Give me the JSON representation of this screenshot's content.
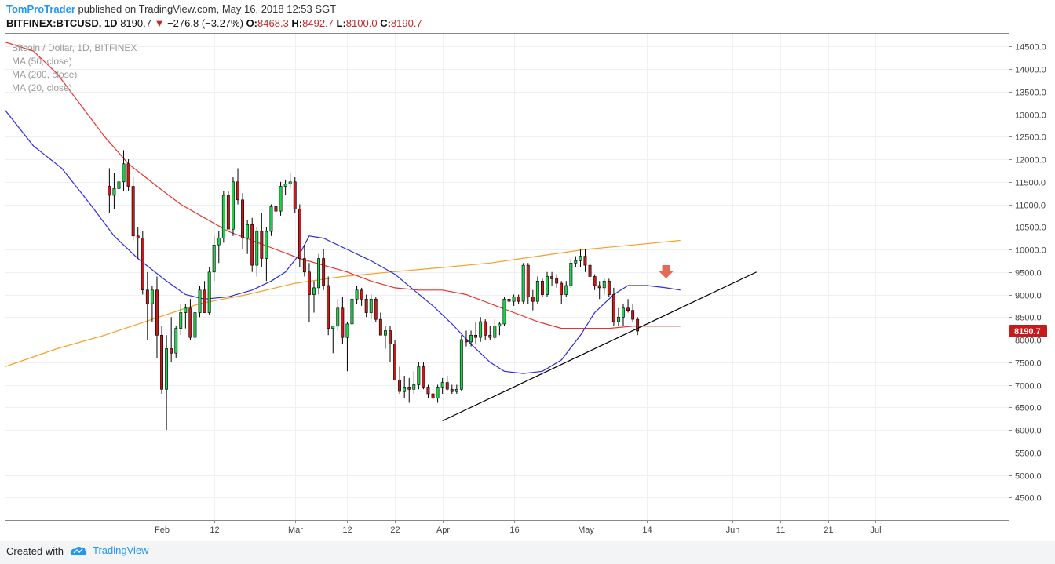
{
  "header": {
    "author": "TomProTrader",
    "published": "published on TradingView.com, May 16, 2018 12:53 SGT",
    "symbol": "BITFINEX:BTCUSD, 1D",
    "last": "8190.7",
    "change_arrow": "▼",
    "change": "−276.8 (−3.27%)",
    "o_label": "O:",
    "o": "8468.3",
    "h_label": "H:",
    "h": "8492.7",
    "l_label": "L:",
    "l": "8100.0",
    "c_label": "C:",
    "c": "8190.7"
  },
  "footer": {
    "created": "Created with",
    "brand": "TradingView",
    "brand_icon": "cloud-logo-icon"
  },
  "colors": {
    "up": "#1fd14a",
    "down": "#c41b1b",
    "ma50": "#e8322e",
    "ma200": "#f5a028",
    "ma20": "#2b2dde",
    "trend": "#000000",
    "accent": "#2196f3",
    "price_badge": "#c41b1b"
  },
  "chart_data": {
    "type": "candlestick",
    "title": "Bitcoin / Dollar, 1D, BITFINEX",
    "legend": [
      "MA (50, close)",
      "MA (200, close)",
      "MA (20, close)"
    ],
    "ylim": [
      4000,
      14800
    ],
    "yticks": [
      4500,
      5000,
      5500,
      6000,
      6500,
      7000,
      7500,
      8000,
      8500,
      9000,
      9500,
      10000,
      10500,
      11000,
      11500,
      12000,
      12500,
      13000,
      13500,
      14000,
      14500
    ],
    "x_day_range": [
      -1,
      210
    ],
    "xticks": [
      {
        "label": "Feb",
        "day": 32
      },
      {
        "label": "12",
        "day": 43
      },
      {
        "label": "Mar",
        "day": 60
      },
      {
        "label": "12",
        "day": 71
      },
      {
        "label": "22",
        "day": 81
      },
      {
        "label": "Apr",
        "day": 91
      },
      {
        "label": "16",
        "day": 106
      },
      {
        "label": "May",
        "day": 121
      },
      {
        "label": "14",
        "day": 134
      },
      {
        "label": "Jun",
        "day": 152
      },
      {
        "label": "11",
        "day": 162
      },
      {
        "label": "21",
        "day": 172
      },
      {
        "label": "Jul",
        "day": 182
      }
    ],
    "candles_first_day": 21,
    "candles": [
      [
        11400,
        11800,
        10800,
        11200
      ],
      [
        11200,
        11700,
        10900,
        11350
      ],
      [
        11350,
        11900,
        11000,
        11500
      ],
      [
        11500,
        12200,
        11300,
        11900
      ],
      [
        11900,
        12000,
        11300,
        11400
      ],
      [
        11400,
        11600,
        10200,
        10300
      ],
      [
        10300,
        10500,
        9800,
        10250
      ],
      [
        10250,
        10400,
        9000,
        9100
      ],
      [
        9100,
        9500,
        8000,
        8800
      ],
      [
        8800,
        9200,
        8400,
        9100
      ],
      [
        9100,
        9400,
        7600,
        8100
      ],
      [
        8100,
        8300,
        6800,
        6900
      ],
      [
        6900,
        8100,
        6000,
        7800
      ],
      [
        7800,
        8500,
        7500,
        7700
      ],
      [
        7700,
        8300,
        7600,
        8250
      ],
      [
        8250,
        8800,
        8100,
        8600
      ],
      [
        8600,
        8800,
        8250,
        8700
      ],
      [
        8700,
        8900,
        8000,
        8050
      ],
      [
        8050,
        8700,
        7900,
        8600
      ],
      [
        8600,
        9200,
        8500,
        9100
      ],
      [
        9100,
        9300,
        8700,
        8600
      ],
      [
        8600,
        9600,
        8550,
        9500
      ],
      [
        9500,
        10300,
        9300,
        10100
      ],
      [
        10100,
        10400,
        9700,
        10250
      ],
      [
        10250,
        11300,
        10150,
        11200
      ],
      [
        11200,
        11300,
        10500,
        10450
      ],
      [
        10450,
        11600,
        10300,
        11500
      ],
      [
        11500,
        11800,
        11000,
        11100
      ],
      [
        11100,
        11250,
        10000,
        10250
      ],
      [
        10250,
        10650,
        9900,
        10550
      ],
      [
        10550,
        10700,
        9500,
        9650
      ],
      [
        9650,
        10500,
        9400,
        10400
      ],
      [
        10400,
        10800,
        9600,
        9800
      ],
      [
        9800,
        10500,
        9300,
        10400
      ],
      [
        10400,
        11000,
        10300,
        10950
      ],
      [
        10950,
        11200,
        10700,
        10850
      ],
      [
        10850,
        11500,
        10750,
        11400
      ],
      [
        11400,
        11550,
        11200,
        11450
      ],
      [
        11450,
        11700,
        11350,
        11500
      ],
      [
        11500,
        11600,
        10800,
        10900
      ],
      [
        10900,
        11000,
        9600,
        9800
      ],
      [
        9800,
        10100,
        9400,
        9500
      ],
      [
        9500,
        9700,
        8400,
        9000
      ],
      [
        9000,
        9300,
        8600,
        9150
      ],
      [
        9150,
        9900,
        9000,
        9800
      ],
      [
        9800,
        10000,
        9100,
        9200
      ],
      [
        9200,
        9400,
        8100,
        8250
      ],
      [
        8250,
        8300,
        7700,
        8300
      ],
      [
        8300,
        8900,
        8200,
        8700
      ],
      [
        8700,
        8950,
        7900,
        8050
      ],
      [
        8050,
        8400,
        7300,
        8350
      ],
      [
        8350,
        9000,
        8250,
        8900
      ],
      [
        8900,
        9200,
        8800,
        9100
      ],
      [
        9100,
        9150,
        8750,
        8900
      ],
      [
        8900,
        9000,
        8500,
        8600
      ],
      [
        8600,
        9000,
        8450,
        8900
      ],
      [
        8900,
        8950,
        8400,
        8450
      ],
      [
        8450,
        8600,
        8100,
        8100
      ],
      [
        8100,
        8300,
        7800,
        8200
      ],
      [
        8200,
        8300,
        7500,
        7900
      ],
      [
        7900,
        8000,
        7200,
        7100
      ],
      [
        7100,
        7400,
        6800,
        6850
      ],
      [
        6850,
        7200,
        6700,
        6950
      ],
      [
        6950,
        7150,
        6600,
        6900
      ],
      [
        6900,
        7300,
        6800,
        7000
      ],
      [
        7000,
        7500,
        6900,
        7400
      ],
      [
        7400,
        7500,
        6900,
        6950
      ],
      [
        6950,
        7000,
        6700,
        6800
      ],
      [
        6800,
        7000,
        6650,
        6700
      ],
      [
        6700,
        7000,
        6600,
        6950
      ],
      [
        6950,
        7150,
        6800,
        7050
      ],
      [
        7050,
        7200,
        6850,
        6900
      ],
      [
        6900,
        7000,
        6800,
        6850
      ],
      [
        6850,
        7000,
        6800,
        6900
      ],
      [
        6900,
        8100,
        6850,
        8000
      ],
      [
        8000,
        8200,
        7850,
        7950
      ],
      [
        7950,
        8200,
        7850,
        8100
      ],
      [
        8100,
        8400,
        7900,
        8050
      ],
      [
        8050,
        8500,
        7950,
        8400
      ],
      [
        8400,
        8450,
        8000,
        8100
      ],
      [
        8100,
        8300,
        8000,
        8050
      ],
      [
        8050,
        8450,
        8000,
        8300
      ],
      [
        8300,
        8400,
        8100,
        8350
      ],
      [
        8350,
        8950,
        8300,
        8900
      ],
      [
        8900,
        9000,
        8800,
        8850
      ],
      [
        8850,
        9000,
        8750,
        8950
      ],
      [
        8950,
        9000,
        8800,
        8850
      ],
      [
        8850,
        9700,
        8800,
        9650
      ],
      [
        9650,
        9700,
        8800,
        8950
      ],
      [
        8950,
        9100,
        8650,
        8850
      ],
      [
        8850,
        9400,
        8800,
        9300
      ],
      [
        9300,
        9350,
        8950,
        9000
      ],
      [
        9000,
        9500,
        8950,
        9400
      ],
      [
        9400,
        9500,
        9200,
        9350
      ],
      [
        9350,
        9450,
        9150,
        9250
      ],
      [
        9250,
        9300,
        8800,
        9000
      ],
      [
        9000,
        9300,
        8950,
        9200
      ],
      [
        9200,
        9800,
        9150,
        9700
      ],
      [
        9700,
        9850,
        9600,
        9750
      ],
      [
        9750,
        10000,
        9600,
        9850
      ],
      [
        9850,
        10000,
        9500,
        9650
      ],
      [
        9650,
        9700,
        9300,
        9400
      ],
      [
        9400,
        9450,
        9100,
        9200
      ],
      [
        9200,
        9300,
        8900,
        9150
      ],
      [
        9150,
        9350,
        9000,
        9300
      ],
      [
        9300,
        9350,
        8950,
        9000
      ],
      [
        9000,
        9150,
        8300,
        8400
      ],
      [
        8400,
        8700,
        8300,
        8500
      ],
      [
        8500,
        8800,
        8300,
        8700
      ],
      [
        8700,
        8900,
        8600,
        8650
      ],
      [
        8650,
        8800,
        8400,
        8450
      ],
      [
        8450,
        8500,
        8100,
        8190.7
      ]
    ],
    "ma20": [
      [
        -1,
        13100
      ],
      [
        5,
        12300
      ],
      [
        11,
        11800
      ],
      [
        17,
        11000
      ],
      [
        22,
        10300
      ],
      [
        27,
        9800
      ],
      [
        33,
        9300
      ],
      [
        37,
        9000
      ],
      [
        41,
        8900
      ],
      [
        46,
        8950
      ],
      [
        51,
        9100
      ],
      [
        55,
        9300
      ],
      [
        58,
        9500
      ],
      [
        61,
        9900
      ],
      [
        63,
        10300
      ],
      [
        66,
        10250
      ],
      [
        71,
        10000
      ],
      [
        76,
        9750
      ],
      [
        81,
        9450
      ],
      [
        85,
        9100
      ],
      [
        89,
        8750
      ],
      [
        93,
        8350
      ],
      [
        97,
        7900
      ],
      [
        101,
        7500
      ],
      [
        104,
        7300
      ],
      [
        108,
        7250
      ],
      [
        112,
        7300
      ],
      [
        116,
        7550
      ],
      [
        120,
        8100
      ],
      [
        123,
        8600
      ],
      [
        127,
        9000
      ],
      [
        130,
        9200
      ],
      [
        134,
        9200
      ],
      [
        138,
        9150
      ],
      [
        141,
        9100
      ]
    ],
    "ma50": [
      [
        -1,
        14600
      ],
      [
        5,
        14400
      ],
      [
        10,
        13900
      ],
      [
        15,
        13200
      ],
      [
        20,
        12500
      ],
      [
        25,
        11900
      ],
      [
        31,
        11400
      ],
      [
        36,
        11000
      ],
      [
        41,
        10700
      ],
      [
        46,
        10400
      ],
      [
        51,
        10200
      ],
      [
        56,
        10000
      ],
      [
        61,
        9800
      ],
      [
        66,
        9650
      ],
      [
        71,
        9500
      ],
      [
        76,
        9300
      ],
      [
        81,
        9150
      ],
      [
        86,
        9100
      ],
      [
        91,
        9100
      ],
      [
        96,
        9000
      ],
      [
        101,
        8800
      ],
      [
        106,
        8600
      ],
      [
        111,
        8400
      ],
      [
        116,
        8250
      ],
      [
        121,
        8250
      ],
      [
        126,
        8250
      ],
      [
        131,
        8300
      ],
      [
        136,
        8300
      ],
      [
        141,
        8300
      ]
    ],
    "ma200": [
      [
        -1,
        7400
      ],
      [
        10,
        7800
      ],
      [
        20,
        8100
      ],
      [
        30,
        8450
      ],
      [
        40,
        8800
      ],
      [
        50,
        9000
      ],
      [
        60,
        9250
      ],
      [
        70,
        9400
      ],
      [
        80,
        9500
      ],
      [
        91,
        9600
      ],
      [
        101,
        9700
      ],
      [
        111,
        9850
      ],
      [
        121,
        10000
      ],
      [
        131,
        10100
      ],
      [
        141,
        10200
      ]
    ],
    "trendline": {
      "from": [
        91,
        6200
      ],
      "to": [
        157,
        9500
      ]
    },
    "annotation": {
      "type": "down-arrow",
      "day": 138,
      "price": 9460
    },
    "last_price": 8190.7,
    "last_price_label": "8190.7"
  }
}
